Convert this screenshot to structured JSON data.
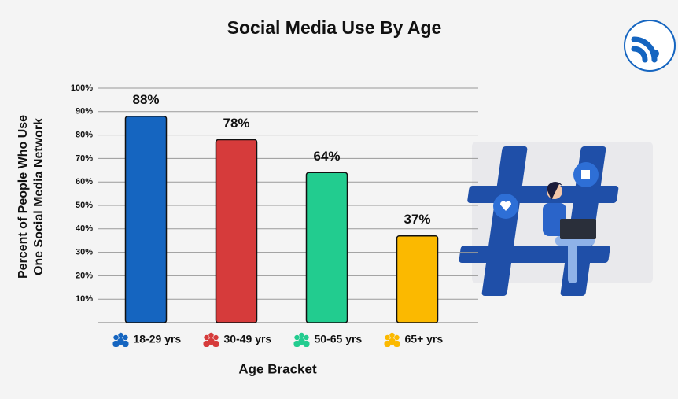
{
  "chart_data": {
    "type": "bar",
    "title": "Social Media Use By Age",
    "y_label": [
      "Percent of People Who Use",
      "One Social Media Network"
    ],
    "x_label": "Age Bracket",
    "categories": [
      "18-29 yrs",
      "30-49 yrs",
      "50-65 yrs",
      "65+ yrs"
    ],
    "values": [
      88,
      78,
      64,
      37
    ],
    "value_labels": [
      "88%",
      "78%",
      "64%",
      "37%"
    ],
    "colors": [
      "#1565c0",
      "#d63b3b",
      "#22cc8f",
      "#fbb900"
    ],
    "ylim": [
      0,
      100
    ],
    "yticks": [
      {
        "value": 10,
        "label": "10%"
      },
      {
        "value": 20,
        "label": "20%"
      },
      {
        "value": 30,
        "label": "30%"
      },
      {
        "value": 40,
        "label": "40%"
      },
      {
        "value": 50,
        "label": "50%"
      },
      {
        "value": 60,
        "label": "60%"
      },
      {
        "value": 70,
        "label": "70%"
      },
      {
        "value": 80,
        "label": "80%"
      },
      {
        "value": 90,
        "label": "90%"
      },
      {
        "value": 100,
        "label": "100%"
      }
    ],
    "grid": true
  }
}
